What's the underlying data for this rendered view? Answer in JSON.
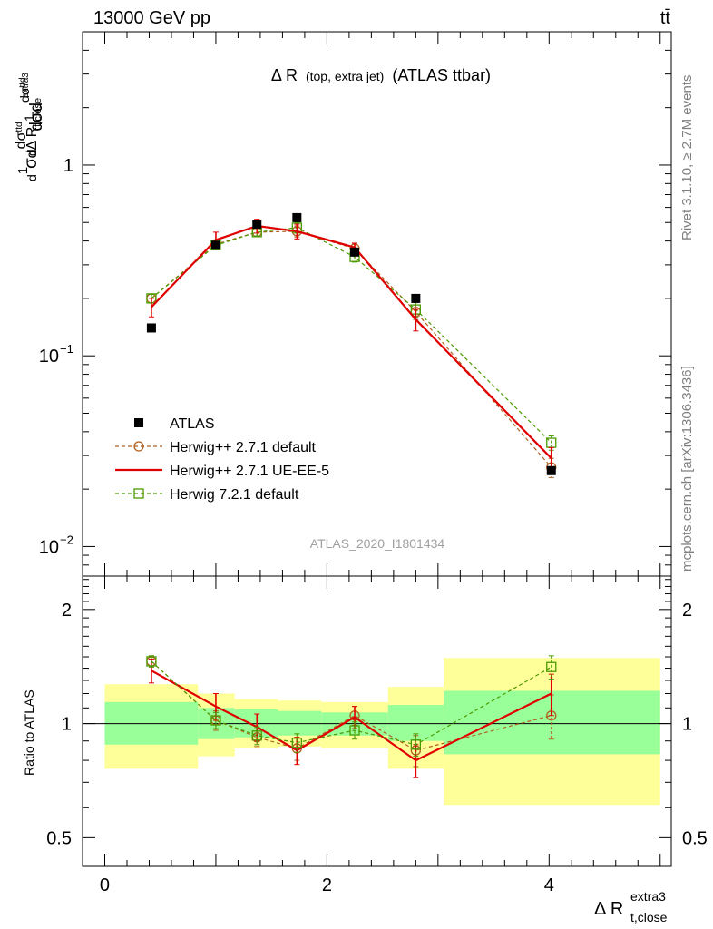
{
  "header": {
    "left": "13000 GeV pp",
    "right": "tt̄"
  },
  "side_texts": {
    "rivet": "Rivet 3.1.10, ≥ 2.7M events",
    "mcplots": "mcplots.cern.ch [arXiv:1306.3436]"
  },
  "chart_data": [
    {
      "type": "scatter",
      "title": "Δ R (top, extra jet) (ATLAS ttbar)",
      "title_main": "Δ R",
      "title_paren": "(top, extra jet)",
      "title_tail": "(ATLAS ttbar)",
      "ylabel": "1/σ dσ/dΔ R_{t,close}^{extra3}",
      "yscale": "log",
      "ylim": [
        0.007,
        5.0
      ],
      "xlim": [
        -0.2,
        5.1
      ],
      "ytick_labels": [
        {
          "value": 1,
          "label": "1"
        },
        {
          "value": 0.1,
          "label": "10",
          "exp": "−1"
        },
        {
          "value": 0.01,
          "label": "10",
          "exp": "−2"
        }
      ],
      "watermark": "ATLAS_2020_I1801434",
      "legend_position": "lower-left",
      "series": [
        {
          "name": "ATLAS",
          "color": "#000000",
          "marker": "square-filled",
          "x": [
            0.42,
            1.0,
            1.37,
            1.73,
            2.25,
            2.8,
            4.02
          ],
          "y": [
            0.14,
            0.38,
            0.49,
            0.53,
            0.35,
            0.2,
            0.025
          ]
        },
        {
          "name": "Herwig++ 2.7.1 default",
          "color": "#b06020",
          "marker": "circle-open",
          "style": "dashed",
          "x": [
            0.42,
            1.0,
            1.37,
            1.73,
            2.25,
            2.8,
            4.02
          ],
          "y": [
            0.2,
            0.385,
            0.445,
            0.45,
            0.365,
            0.17,
            0.026
          ],
          "err": [
            0.01,
            0.02,
            0.02,
            0.03,
            0.02,
            0.015,
            0.003
          ]
        },
        {
          "name": "Herwig++ 2.7.1 UE-EE-5",
          "color": "#e00000",
          "marker": "none",
          "style": "solid",
          "x": [
            0.42,
            1.0,
            1.37,
            1.73,
            2.25,
            2.8,
            4.02
          ],
          "y": [
            0.18,
            0.405,
            0.48,
            0.45,
            0.37,
            0.155,
            0.029
          ],
          "err": [
            0.02,
            0.04,
            0.04,
            0.04,
            0.02,
            0.02,
            0.004
          ]
        },
        {
          "name": "Herwig 7.2.1 default",
          "color": "#4a9a00",
          "marker": "square-open",
          "style": "dashed",
          "x": [
            0.42,
            1.0,
            1.37,
            1.73,
            2.25,
            2.8,
            4.02
          ],
          "y": [
            0.2,
            0.38,
            0.445,
            0.47,
            0.33,
            0.175,
            0.035
          ],
          "err": [
            0.01,
            0.02,
            0.02,
            0.03,
            0.02,
            0.015,
            0.003
          ]
        }
      ]
    },
    {
      "type": "scatter",
      "ylabel": "Ratio to ATLAS",
      "xlabel": "Δ R_{t,close}^{extra3}",
      "yscale": "log",
      "ylim": [
        0.42,
        2.45
      ],
      "xlim": [
        -0.2,
        5.1
      ],
      "xticks": [
        0,
        2,
        4
      ],
      "yticks": [
        0.5,
        1,
        2
      ],
      "reference_line": 1,
      "bins": [
        0,
        0.84,
        1.17,
        1.56,
        1.95,
        2.55,
        3.05,
        5.0
      ],
      "band_inner": [
        [
          0.88,
          1.14
        ],
        [
          0.91,
          1.1
        ],
        [
          0.92,
          1.09
        ],
        [
          0.93,
          1.08
        ],
        [
          0.93,
          1.07
        ],
        [
          0.9,
          1.12
        ],
        [
          0.83,
          1.22
        ]
      ],
      "band_outer": [
        [
          0.76,
          1.27
        ],
        [
          0.82,
          1.2
        ],
        [
          0.86,
          1.16
        ],
        [
          0.87,
          1.15
        ],
        [
          0.86,
          1.14
        ],
        [
          0.76,
          1.25
        ],
        [
          0.61,
          1.49
        ]
      ],
      "series": [
        {
          "name": "Herwig++ 2.7.1 default",
          "color": "#b06020",
          "marker": "circle-open",
          "style": "dashed",
          "x": [
            0.42,
            1.0,
            1.37,
            1.73,
            2.25,
            2.8,
            4.02
          ],
          "y": [
            1.46,
            1.02,
            0.92,
            0.86,
            1.05,
            0.85,
            1.05
          ],
          "err": [
            0.05,
            0.06,
            0.05,
            0.06,
            0.06,
            0.08,
            0.14
          ]
        },
        {
          "name": "Herwig++ 2.7.1 UE-EE-5",
          "color": "#e00000",
          "marker": "none",
          "style": "solid",
          "x": [
            0.42,
            1.0,
            1.37,
            1.73,
            2.25,
            2.8,
            4.02
          ],
          "y": [
            1.38,
            1.11,
            0.98,
            0.85,
            1.04,
            0.8,
            1.2
          ],
          "err": [
            0.1,
            0.09,
            0.08,
            0.07,
            0.07,
            0.08,
            0.15
          ]
        },
        {
          "name": "Herwig 7.2.1 default",
          "color": "#4a9a00",
          "marker": "square-open",
          "style": "dashed",
          "x": [
            0.42,
            1.0,
            1.37,
            1.73,
            2.25,
            2.8,
            4.02
          ],
          "y": [
            1.46,
            1.02,
            0.93,
            0.89,
            0.96,
            0.88,
            1.41
          ],
          "err": [
            0.05,
            0.05,
            0.05,
            0.05,
            0.05,
            0.06,
            0.1
          ]
        }
      ]
    }
  ]
}
